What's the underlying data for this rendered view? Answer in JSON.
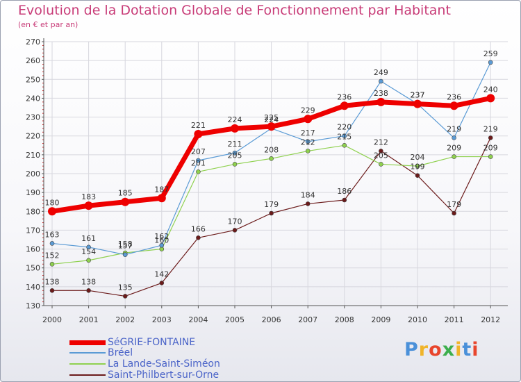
{
  "title": "Evolution de la Dotation Globale de Fonctionnement par Habitant",
  "subtitle": "(en € et par an)",
  "logo": {
    "text": "Proxiti",
    "colors": [
      "#4a90d9",
      "#f0b429",
      "#e8452c",
      "#3cae4c",
      "#f0b429",
      "#4a90d9",
      "#e8452c"
    ]
  },
  "chart_data": {
    "type": "line",
    "title": "Evolution de la Dotation Globale de Fonctionnement par Habitant",
    "subtitle": "(en € et par an)",
    "xlabel": "",
    "ylabel": "",
    "ylim": [
      130,
      270
    ],
    "yticks": [
      "130",
      "140",
      "150",
      "160",
      "170",
      "180",
      "190",
      "200",
      "210",
      "220",
      "230",
      "240",
      "250",
      "260",
      "270"
    ],
    "categories": [
      "2000",
      "2001",
      "2002",
      "2003",
      "2004",
      "2005",
      "2006",
      "2007",
      "2008",
      "2009",
      "2010",
      "2011",
      "2012"
    ],
    "grid": true,
    "series": [
      {
        "name": "SéGRIE-FONTAINE",
        "color": "#ee0000",
        "values": [
          180,
          183,
          185,
          187,
          221,
          224,
          225,
          229,
          236,
          238,
          237,
          236,
          240
        ],
        "labels": [
          "180",
          "183",
          "185",
          "187",
          "221",
          "224",
          "225",
          "229",
          "236",
          "238",
          "237",
          "236",
          "240"
        ]
      },
      {
        "name": "Bréel",
        "color": "#5b9bd5",
        "values": [
          163,
          161,
          157,
          162,
          207,
          211,
          224,
          217,
          220,
          249,
          237,
          219,
          259
        ],
        "labels": [
          "163",
          "161",
          "157",
          "162",
          "207",
          "211",
          "224",
          "217",
          "220",
          "249",
          "237",
          "219",
          "259"
        ]
      },
      {
        "name": "La Lande-Saint-Siméon",
        "color": "#8fd14f",
        "values": [
          152,
          154,
          158,
          160,
          201,
          205,
          208,
          212,
          215,
          205,
          204,
          209,
          209
        ],
        "labels": [
          "152",
          "154",
          "158",
          "160",
          "201",
          "205",
          "208",
          "212",
          "215",
          "205",
          "204",
          "209",
          "209"
        ]
      },
      {
        "name": "Saint-Philbert-sur-Orne",
        "color": "#6b1a1a",
        "values": [
          138,
          138,
          135,
          142,
          166,
          170,
          179,
          184,
          186,
          212,
          199,
          179,
          219
        ],
        "labels": [
          "138",
          "138",
          "135",
          "142",
          "166",
          "170",
          "179",
          "184",
          "186",
          "212",
          "199",
          "179",
          "219"
        ]
      }
    ]
  }
}
